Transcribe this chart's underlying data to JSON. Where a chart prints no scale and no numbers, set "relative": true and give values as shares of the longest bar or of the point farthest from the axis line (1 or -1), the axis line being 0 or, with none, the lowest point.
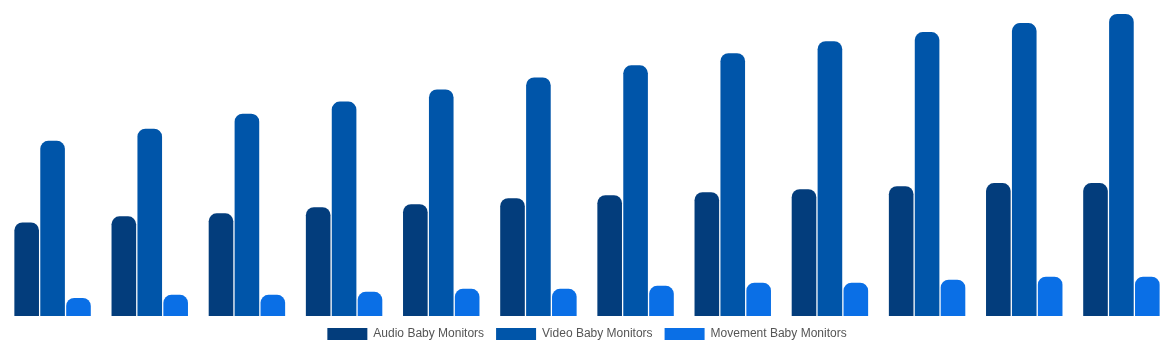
{
  "chart_data": {
    "type": "bar",
    "relative": true,
    "categories": [
      null,
      null,
      null,
      null,
      null,
      null,
      null,
      null,
      null,
      null,
      null,
      null
    ],
    "legend": "bottom",
    "grid": false,
    "series": [
      {
        "name": "Audio Baby Monitors",
        "color": "#033d7c",
        "values": [
          0.31,
          0.33,
          0.34,
          0.36,
          0.37,
          0.39,
          0.4,
          0.41,
          0.42,
          0.43,
          0.44,
          0.44
        ]
      },
      {
        "name": "Video Baby Monitors",
        "color": "#0055a9",
        "values": [
          0.58,
          0.62,
          0.67,
          0.71,
          0.75,
          0.79,
          0.83,
          0.87,
          0.91,
          0.94,
          0.97,
          1
        ]
      },
      {
        "name": "Movement Baby Monitors",
        "color": "#0a6fe6",
        "values": [
          0.06,
          0.07,
          0.07,
          0.08,
          0.09,
          0.09,
          0.1,
          0.11,
          0.11,
          0.12,
          0.13,
          0.13
        ]
      }
    ]
  }
}
